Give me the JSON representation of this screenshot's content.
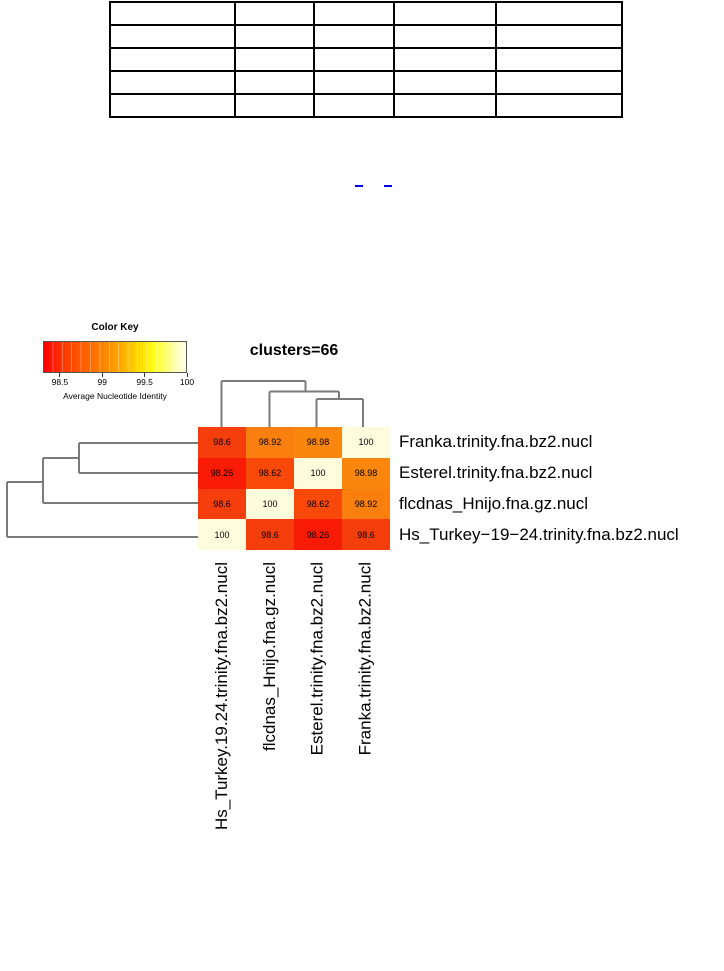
{
  "page": {
    "background": "#ffffff"
  },
  "table": {
    "rows": [
      [
        "",
        "",
        "",
        "",
        ""
      ],
      [
        "",
        "",
        "",
        "",
        ""
      ],
      [
        "",
        "",
        "",
        "",
        ""
      ],
      [
        "",
        "",
        "",
        "",
        ""
      ],
      [
        "",
        "",
        "",
        "",
        ""
      ]
    ]
  },
  "links": {
    "dash_color": "#0000EE",
    "dash_count": 2
  },
  "chart_data": {
    "type": "heatmap",
    "title": "clusters=66",
    "columns": [
      "Hs_Turkey.19.24.trinity.fna.bz2.nucl",
      "flcdnas_Hnijo.fna.gz.nucl",
      "Esterel.trinity.fna.bz2.nucl",
      "Franka.trinity.fna.bz2.nucl"
    ],
    "rows": [
      "Franka.trinity.fna.bz2.nucl",
      "Esterel.trinity.fna.bz2.nucl",
      "flcdnas_Hnijo.fna.gz.nucl",
      "Hs_Turkey−19−24.trinity.fna.bz2.nucl"
    ],
    "values": [
      [
        98.6,
        98.92,
        98.98,
        100
      ],
      [
        98.26,
        98.62,
        100,
        98.98
      ],
      [
        98.6,
        100,
        98.62,
        98.92
      ],
      [
        100,
        98.6,
        98.26,
        98.6
      ]
    ],
    "cell_color_map": {
      "100": "#FFFCDE",
      "98.98": "#FB860E",
      "98.92": "#FB7F0F",
      "98.62": "#F8490B",
      "98.6": "#F63E0C",
      "98.26": "#F91B06"
    },
    "value_text_color": "#000000",
    "colorbar": {
      "title": "Color Key",
      "label": "Average Nucleotide Identity",
      "ticks": [
        98.5,
        99,
        99.5,
        100
      ],
      "range": [
        98.3,
        100
      ],
      "gradient": [
        "#FE0000",
        "#FC7300",
        "#FDAA00",
        "#FEFF1E",
        "#FFFFDF"
      ]
    },
    "dendrogram_color": "#7B7B7B",
    "col_dendrogram_segments": [
      [
        221.5,
        427,
        221.5,
        381
      ],
      [
        221.5,
        381,
        305.5,
        381
      ],
      [
        305.5,
        381,
        305.5,
        391.5
      ],
      [
        269.5,
        391.5,
        339,
        391.5
      ],
      [
        269.5,
        391.5,
        269.5,
        427
      ],
      [
        339,
        391.5,
        339,
        399
      ],
      [
        316.5,
        399,
        363,
        399
      ],
      [
        316.5,
        399,
        316.5,
        427
      ],
      [
        363,
        399,
        363,
        427
      ]
    ],
    "row_dendrogram_segments": [
      [
        198,
        443,
        79,
        443
      ],
      [
        79,
        443,
        79,
        473
      ],
      [
        198,
        473,
        79,
        473
      ],
      [
        79,
        458,
        43,
        458
      ],
      [
        43,
        458,
        43,
        503
      ],
      [
        198,
        503,
        43,
        503
      ],
      [
        43,
        482,
        7,
        482
      ],
      [
        7,
        482,
        7,
        537
      ],
      [
        198,
        537,
        7,
        537
      ]
    ],
    "legend_position": "top-left",
    "grid": false
  }
}
